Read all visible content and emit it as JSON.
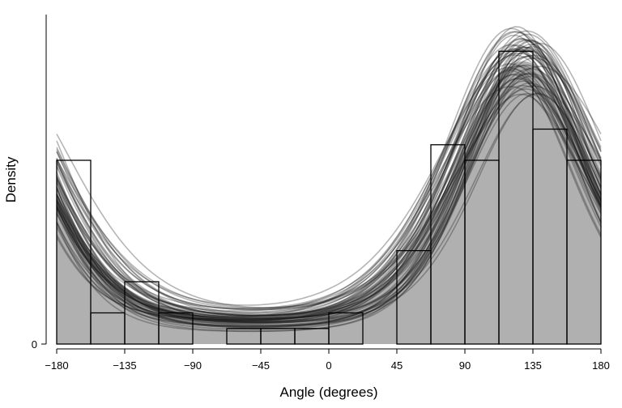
{
  "chart_data": {
    "type": "histogram-density",
    "xlabel": "Angle (degrees)",
    "ylabel": "Density",
    "xlim": [
      -180,
      180
    ],
    "x_ticks": [
      -180,
      -135,
      -90,
      -45,
      0,
      45,
      90,
      135,
      180
    ],
    "x_tick_labels": [
      "−180",
      "−135",
      "−90",
      "−45",
      "0",
      "45",
      "90",
      "135",
      "180"
    ],
    "y_ticks": [
      0
    ],
    "y_tick_labels": [
      "0"
    ],
    "ylim": [
      -0.0002,
      0.0105
    ],
    "bin_width": 22.5,
    "density_histogram": {
      "bin_starts": [
        -180,
        -157.5,
        -135,
        -112.5,
        -90,
        -67.5,
        -45,
        -22.5,
        0,
        22.5,
        45,
        67.5,
        90,
        112.5,
        135,
        157.5
      ],
      "values": [
        0.0059,
        0.001,
        0.002,
        0.001,
        0.0,
        0.0005,
        0.0005,
        0.0005,
        0.001,
        0.0,
        0.003,
        0.0064,
        0.0059,
        0.0094,
        0.0069,
        0.0059
      ]
    },
    "ensemble_curves": {
      "count": 60,
      "description_value_ranges": {
        "peak_angle_deg": [
          118,
          140
        ],
        "peak_density": [
          0.008,
          0.0102
        ],
        "density_at_minus_180": [
          0.0052,
          0.0063
        ],
        "minimum_density": [
          0.0003,
          0.0008
        ]
      }
    },
    "colors": {
      "filled_density": "#b0b0b0",
      "histogram_outline": "#000000",
      "curves": "#1a1a1a",
      "axis": "#000000"
    }
  }
}
